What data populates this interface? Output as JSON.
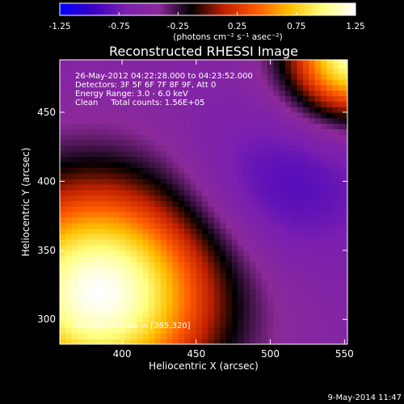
{
  "colorbar": {
    "ticks": [
      "-1.25",
      "-0.75",
      "-0.25",
      "0.25",
      "0.75",
      "1.25"
    ],
    "tick_values": [
      -1.25,
      -0.75,
      -0.25,
      0.25,
      0.75,
      1.25
    ],
    "range": [
      -1.25,
      1.25
    ],
    "unit_label": "(photons cm⁻² s⁻¹ asec⁻²)"
  },
  "chart_data": {
    "type": "heatmap",
    "title": "Reconstructed RHESSI Image",
    "xlabel": "Heliocentric X (arcsec)",
    "ylabel": "Heliocentric Y (arcsec)",
    "xlim": [
      358,
      552
    ],
    "ylim": [
      282,
      488
    ],
    "xticks": [
      400,
      450,
      500,
      550
    ],
    "yticks": [
      300,
      350,
      400,
      450
    ],
    "annotations": [
      "26-May-2012 04:22:28.000 to 04:23:52.000",
      "Detectors: 3F 5F 6F 7F 8F 9F, Att 0",
      "Energy Range: 3.0 - 6.0 keV",
      "Clean     Total counts: 1.56E+05"
    ],
    "peak_label": "Position of Peak = [385,320]",
    "peak": [
      385,
      320
    ],
    "colormap": "rhessi-heat",
    "colormap_stops": [
      "#0000ff",
      "#3a00c0",
      "#7a1fb0",
      "#8c2a9a",
      "#000000",
      "#c02000",
      "#ff5a00",
      "#ffc000",
      "#ffff80",
      "#ffffff"
    ],
    "sources": [
      {
        "name": "peak",
        "x": 385,
        "y": 320,
        "amplitude": 1.25
      },
      {
        "name": "corner",
        "x": 555,
        "y": 490,
        "amplitude": 1.05
      },
      {
        "name": "dark-core",
        "x": 505,
        "y": 395,
        "amplitude": -0.9
      }
    ]
  },
  "footer": {
    "date": "9-May-2014 11:47"
  }
}
